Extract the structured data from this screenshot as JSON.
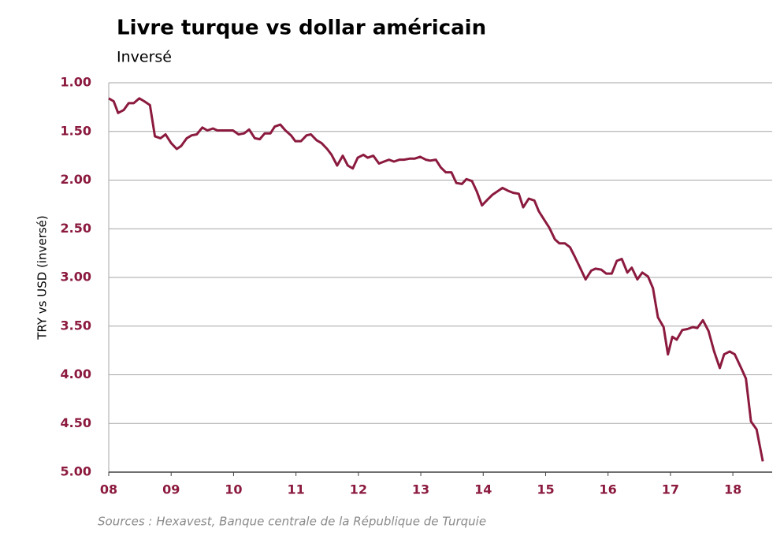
{
  "chart_data": {
    "type": "line",
    "title": "Livre turque vs dollar américain",
    "subtitle": "Inversé",
    "ylabel": "TRY vs USD (inversé)",
    "source": "Sources : Hexavest, Banque centrale de la République de Turquie",
    "color": "#8b1a3e",
    "grid": true,
    "y_inverted": true,
    "xlim": [
      2008,
      2018.63
    ],
    "xticks": [
      {
        "value": 2008,
        "label": "08"
      },
      {
        "value": 2009,
        "label": "09"
      },
      {
        "value": 2010,
        "label": "10"
      },
      {
        "value": 2011,
        "label": "11"
      },
      {
        "value": 2012,
        "label": "12"
      },
      {
        "value": 2013,
        "label": "13"
      },
      {
        "value": 2014,
        "label": "14"
      },
      {
        "value": 2015,
        "label": "15"
      },
      {
        "value": 2016,
        "label": "16"
      },
      {
        "value": 2017,
        "label": "17"
      },
      {
        "value": 2018,
        "label": "18"
      }
    ],
    "ylim": [
      1,
      5
    ],
    "yticks": [
      {
        "value": 1,
        "label": "1.00"
      },
      {
        "value": 1.5,
        "label": "1.50"
      },
      {
        "value": 2,
        "label": "2.00"
      },
      {
        "value": 2.5,
        "label": "2.50"
      },
      {
        "value": 3,
        "label": "3.00"
      },
      {
        "value": 3.5,
        "label": "3.50"
      },
      {
        "value": 4,
        "label": "4.00"
      },
      {
        "value": 4.5,
        "label": "4.50"
      },
      {
        "value": 5,
        "label": "5.00"
      }
    ],
    "x": [
      2008.0,
      2008.08,
      2008.15,
      2008.24,
      2008.32,
      2008.4,
      2008.49,
      2008.57,
      2008.66,
      2008.74,
      2008.83,
      2008.91,
      2009.0,
      2009.09,
      2009.16,
      2009.25,
      2009.33,
      2009.41,
      2009.5,
      2009.58,
      2009.67,
      2009.74,
      2009.99,
      2010.08,
      2010.17,
      2010.25,
      2010.34,
      2010.42,
      2010.5,
      2010.59,
      2010.66,
      2010.75,
      2010.83,
      2010.92,
      2010.99,
      2011.08,
      2011.17,
      2011.24,
      2011.33,
      2011.41,
      2011.5,
      2011.57,
      2011.66,
      2011.75,
      2011.83,
      2011.91,
      2011.99,
      2012.08,
      2012.15,
      2012.24,
      2012.33,
      2012.41,
      2012.49,
      2012.57,
      2012.66,
      2012.73,
      2012.82,
      2012.9,
      2012.99,
      2013.08,
      2013.15,
      2013.24,
      2013.32,
      2013.4,
      2013.49,
      2013.57,
      2013.66,
      2013.73,
      2013.82,
      2013.9,
      2013.98,
      2014.07,
      2014.15,
      2014.24,
      2014.31,
      2014.4,
      2014.48,
      2014.57,
      2014.64,
      2014.73,
      2014.82,
      2014.89,
      2014.97,
      2015.06,
      2015.15,
      2015.22,
      2015.31,
      2015.39,
      2015.47,
      2015.56,
      2015.64,
      2015.73,
      2015.8,
      2015.89,
      2015.97,
      2016.06,
      2016.14,
      2016.22,
      2016.31,
      2016.38,
      2016.47,
      2016.55,
      2016.64,
      2016.72,
      2016.8,
      2016.89,
      2016.96,
      2017.03,
      2017.1,
      2017.19,
      2017.27,
      2017.36,
      2017.43,
      2017.52,
      2017.61,
      2017.7,
      2017.79,
      2017.86,
      2017.95,
      2018.03,
      2018.14,
      2018.21,
      2018.29,
      2018.38,
      2018.48
    ],
    "values": [
      1.16,
      1.19,
      1.31,
      1.28,
      1.21,
      1.21,
      1.16,
      1.19,
      1.23,
      1.55,
      1.57,
      1.53,
      1.62,
      1.68,
      1.65,
      1.57,
      1.54,
      1.53,
      1.46,
      1.49,
      1.47,
      1.49,
      1.49,
      1.53,
      1.52,
      1.48,
      1.57,
      1.58,
      1.52,
      1.52,
      1.45,
      1.43,
      1.49,
      1.54,
      1.6,
      1.6,
      1.54,
      1.53,
      1.59,
      1.62,
      1.68,
      1.74,
      1.85,
      1.75,
      1.85,
      1.88,
      1.77,
      1.74,
      1.77,
      1.75,
      1.83,
      1.81,
      1.79,
      1.81,
      1.79,
      1.79,
      1.78,
      1.78,
      1.76,
      1.79,
      1.8,
      1.79,
      1.87,
      1.92,
      1.92,
      2.03,
      2.04,
      1.99,
      2.01,
      2.12,
      2.26,
      2.2,
      2.15,
      2.11,
      2.08,
      2.11,
      2.13,
      2.14,
      2.28,
      2.19,
      2.21,
      2.32,
      2.4,
      2.49,
      2.61,
      2.65,
      2.65,
      2.69,
      2.79,
      2.91,
      3.02,
      2.93,
      2.91,
      2.92,
      2.96,
      2.96,
      2.83,
      2.81,
      2.95,
      2.9,
      3.02,
      2.95,
      2.99,
      3.11,
      3.41,
      3.51,
      3.79,
      3.61,
      3.64,
      3.54,
      3.53,
      3.51,
      3.52,
      3.44,
      3.55,
      3.76,
      3.93,
      3.79,
      3.76,
      3.79,
      3.94,
      4.04,
      4.48,
      4.56,
      4.89
    ]
  }
}
